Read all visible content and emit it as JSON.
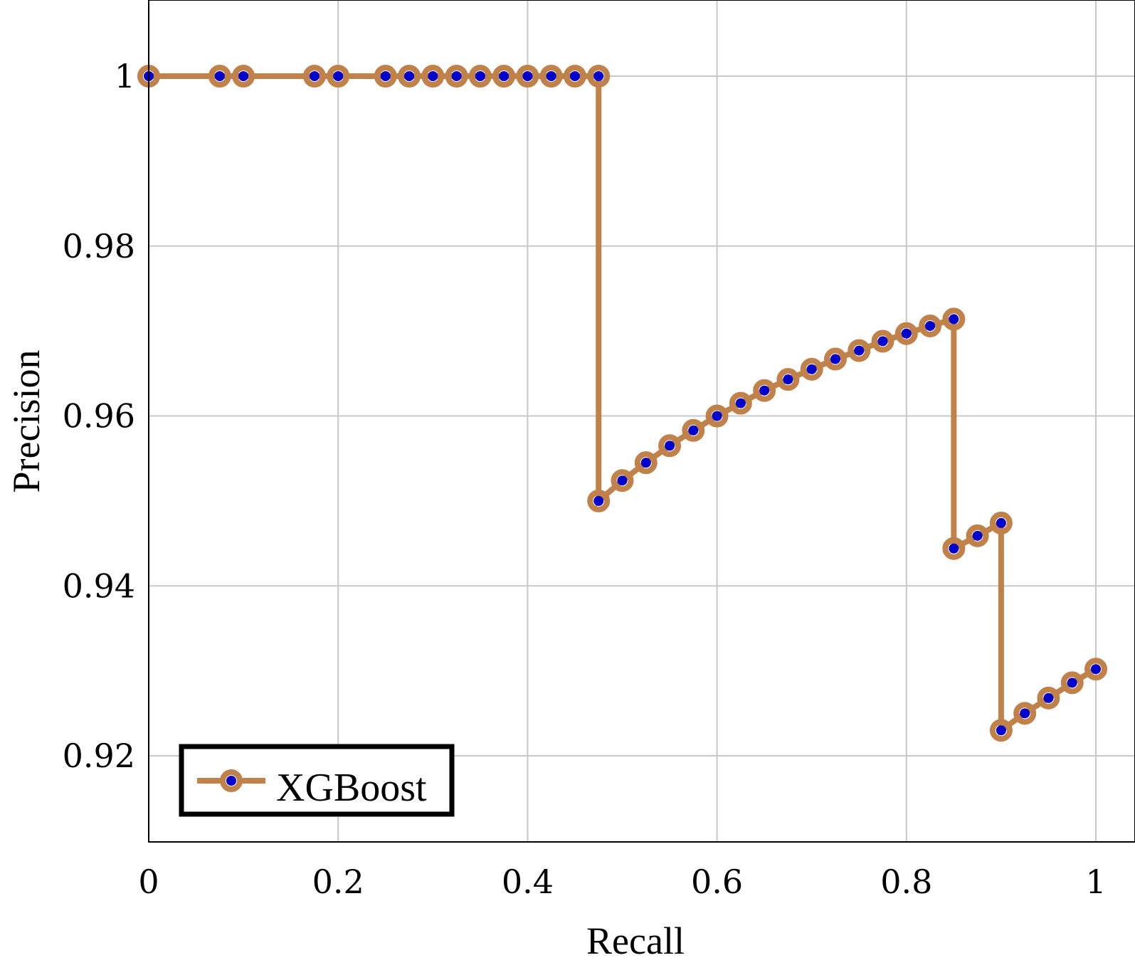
{
  "chart_data": {
    "type": "line",
    "title": "",
    "xlabel": "Recall",
    "ylabel": "Precision",
    "xlim": [
      0,
      1
    ],
    "ylim": [
      0.91,
      1.009
    ],
    "xticks": [
      0,
      0.2,
      0.4,
      0.6,
      0.8,
      1
    ],
    "xtick_labels": [
      "0",
      "0.2",
      "0.4",
      "0.6",
      "0.8",
      "1"
    ],
    "yticks": [
      0.92,
      0.94,
      0.96,
      0.98,
      1
    ],
    "ytick_labels": [
      "0.92",
      "0.94",
      "0.96",
      "0.98",
      "1"
    ],
    "grid": true,
    "legend_position": "bottom-left",
    "series": [
      {
        "name": "XGBoost",
        "line_color": "#c0824a",
        "marker_color": "#0000cc",
        "x": [
          0,
          0.075,
          0.1,
          0.175,
          0.2,
          0.25,
          0.275,
          0.3,
          0.325,
          0.35,
          0.375,
          0.4,
          0.425,
          0.45,
          0.475,
          0.475,
          0.5,
          0.525,
          0.55,
          0.575,
          0.6,
          0.625,
          0.65,
          0.675,
          0.7,
          0.725,
          0.75,
          0.775,
          0.8,
          0.825,
          0.85,
          0.85,
          0.875,
          0.9,
          0.9,
          0.925,
          0.95,
          0.975,
          1
        ],
        "y": [
          1,
          1,
          1,
          1,
          1,
          1,
          1,
          1,
          1,
          1,
          1,
          1,
          1,
          1,
          1,
          0.95,
          0.9524,
          0.9545,
          0.9565,
          0.9583,
          0.96,
          0.9615,
          0.963,
          0.9643,
          0.9655,
          0.9667,
          0.9677,
          0.9688,
          0.9697,
          0.9706,
          0.9714,
          0.9444,
          0.9459,
          0.9474,
          0.923,
          0.925,
          0.9268,
          0.9286,
          0.9302
        ]
      }
    ]
  }
}
